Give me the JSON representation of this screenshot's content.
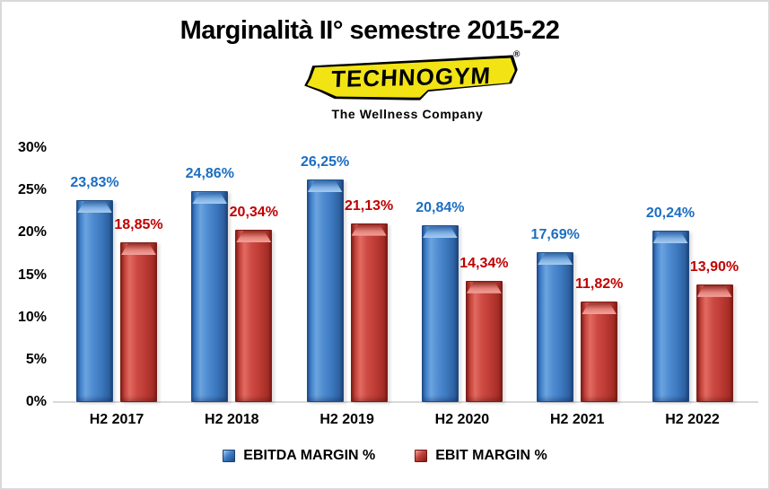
{
  "title": "Marginalità II° semestre 2015-22",
  "logo": {
    "brand": "TechnoGym",
    "brand_display": "TECHNOGYM",
    "registered_mark": "®",
    "tagline": "The Wellness Company",
    "banner_color": "#F2E414"
  },
  "colors": {
    "ebitda_bar": "#3D7EC9",
    "ebit_bar": "#C0392B",
    "ebitda_label": "#1B6EC2",
    "ebit_label": "#C00000",
    "axis_text": "#000000",
    "baseline": "#D9D9D9",
    "frame_border": "#D9D9D9"
  },
  "chart_data": {
    "type": "bar",
    "title": "Marginalità II° semestre 2015-22",
    "categories": [
      "H2 2017",
      "H2 2018",
      "H2 2019",
      "H2 2020",
      "H2 2021",
      "H2 2022"
    ],
    "series": [
      {
        "name": "EBITDA MARGIN %",
        "values": [
          23.83,
          24.86,
          26.25,
          20.84,
          17.69,
          20.24
        ],
        "labels": [
          "23,83%",
          "24,86%",
          "26,25%",
          "20,84%",
          "17,69%",
          "20,24%"
        ],
        "color": "#3D7EC9",
        "label_color": "#1B6EC2"
      },
      {
        "name": "EBIT MARGIN %",
        "values": [
          18.85,
          20.34,
          21.13,
          14.34,
          11.82,
          13.9
        ],
        "labels": [
          "18,85%",
          "20,34%",
          "21,13%",
          "14,34%",
          "11,82%",
          "13,90%"
        ],
        "color": "#C0392B",
        "label_color": "#C00000"
      }
    ],
    "ylim": [
      0,
      30
    ],
    "ytick_step": 5,
    "yticks": [
      "0%",
      "5%",
      "10%",
      "15%",
      "20%",
      "25%",
      "30%"
    ],
    "grid": false,
    "legend_position": "bottom",
    "value_label_decimal_separator": ","
  }
}
